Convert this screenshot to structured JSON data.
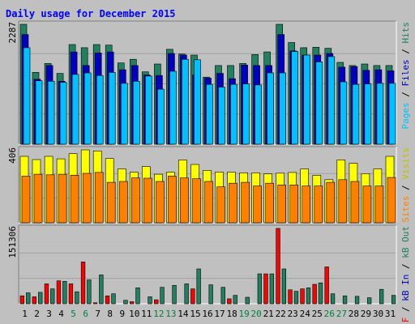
{
  "chart_data": {
    "type": "bar",
    "title": "Daily usage for December 2015",
    "days": [
      1,
      2,
      3,
      4,
      5,
      6,
      7,
      8,
      9,
      10,
      11,
      12,
      13,
      14,
      15,
      16,
      17,
      18,
      19,
      20,
      21,
      22,
      23,
      24,
      25,
      26,
      27,
      28,
      29,
      30,
      31
    ],
    "weekend_days": [
      5,
      6,
      12,
      13,
      19,
      20,
      26,
      27
    ],
    "panels": [
      {
        "id": "hits",
        "max_label": "2287",
        "ymax": 2287,
        "series": [
          {
            "name": "Hits",
            "color": "#208060",
            "values": [
              2287,
              1370,
              1540,
              1350,
              1900,
              1840,
              1900,
              1890,
              1550,
              1620,
              1380,
              1530,
              1810,
              1720,
              1700,
              1280,
              1500,
              1500,
              1540,
              1710,
              1760,
              2287,
              1940,
              1840,
              1850,
              1830,
              1560,
              1500,
              1530,
              1500,
              1500
            ]
          },
          {
            "name": "Files",
            "color": "#0000c0",
            "values": [
              2090,
              1240,
              1500,
              1200,
              1760,
              1500,
              1740,
              1760,
              1420,
              1500,
              1320,
              1310,
              1730,
              1700,
              1320,
              1260,
              1350,
              1250,
              1510,
              1500,
              1500,
              2090,
              1780,
              1700,
              1700,
              1730,
              1470,
              1480,
              1410,
              1420,
              1400
            ]
          },
          {
            "name": "Pages",
            "color": "#00c0ff",
            "values": [
              1840,
              1210,
              1200,
              1180,
              1330,
              1360,
              1310,
              1370,
              1160,
              1200,
              1300,
              1050,
              1390,
              1620,
              1610,
              1140,
              1090,
              1140,
              1150,
              1130,
              1360,
              1360,
              1770,
              1700,
              1570,
              1670,
              1190,
              1140,
              1150,
              1160,
              1160
            ]
          }
        ]
      },
      {
        "id": "visits",
        "max_label": "406",
        "ymax": 406,
        "series": [
          {
            "name": "Visits",
            "color": "#ffff00",
            "values": [
              370,
              352,
              370,
              356,
              385,
              406,
              400,
              358,
              300,
              282,
              313,
              270,
              282,
              350,
              325,
              292,
              282,
              282,
              278,
              278,
              272,
              276,
              280,
              300,
              264,
              240,
              350,
              331,
              274,
              300,
              370
            ]
          },
          {
            "name": "Sites",
            "color": "#ff8000",
            "values": [
              260,
              270,
              267,
              270,
              265,
              275,
              280,
              225,
              230,
              250,
              248,
              230,
              260,
              250,
              245,
              230,
              200,
              220,
              225,
              205,
              220,
              210,
              210,
              205,
              205,
              225,
              240,
              230,
              205,
              205,
              252
            ]
          }
        ]
      },
      {
        "id": "kbytes",
        "max_label": "151306",
        "ymax": 151306,
        "series": [
          {
            "name": "KB F",
            "color": "#ff0000",
            "values": [
              16000,
              14000,
              40000,
              46000,
              40000,
              84000,
              2000,
              16000,
              0,
              4000,
              0,
              8000,
              0,
              0,
              30000,
              0,
              0,
              10000,
              0,
              0,
              60000,
              151306,
              28000,
              30000,
              39000,
              74000,
              0,
              0,
              0,
              0,
              0
            ]
          },
          {
            "name": "KB In",
            "color": "#0000c0",
            "values": [
              0,
              0,
              0,
              0,
              0,
              0,
              0,
              0,
              0,
              0,
              0,
              0,
              0,
              0,
              0,
              0,
              0,
              0,
              0,
              0,
              0,
              0,
              0,
              0,
              0,
              0,
              0,
              0,
              0,
              0,
              0
            ]
          },
          {
            "name": "KB Out",
            "color": "#208060",
            "values": [
              22000,
              23000,
              30000,
              45000,
              24000,
              48000,
              58000,
              20000,
              7000,
              32000,
              14000,
              33000,
              37000,
              40000,
              70000,
              38000,
              33000,
              17000,
              13000,
              60000,
              60000,
              70000,
              25000,
              32000,
              42000,
              20000,
              16000,
              15000,
              12000,
              29000,
              17000
            ]
          }
        ]
      }
    ],
    "right_labels": {
      "hits": [
        {
          "text": "Pages",
          "color": "#00c0ff"
        },
        {
          "text": " / ",
          "color": "#000000"
        },
        {
          "text": "Files",
          "color": "#0000c0"
        },
        {
          "text": " / ",
          "color": "#000000"
        },
        {
          "text": "Hits",
          "color": "#208060"
        }
      ],
      "visits": [
        {
          "text": "Sites",
          "color": "#ff8000"
        },
        {
          "text": " / ",
          "color": "#000000"
        },
        {
          "text": "Visits",
          "color": "#c0c000"
        }
      ],
      "kbytes": [
        {
          "text": "kB F",
          "color": "#ff0000"
        },
        {
          "text": " / ",
          "color": "#000000"
        },
        {
          "text": "kB In",
          "color": "#0000c0"
        },
        {
          "text": " / ",
          "color": "#000000"
        },
        {
          "text": "kB Out",
          "color": "#208060"
        }
      ]
    },
    "colors": {
      "background": "#c0c0c0",
      "border_light": "#ffffff",
      "border_dark": "#808080",
      "title": "#0000ff",
      "weekday_label": "#000000",
      "weekend_label": "#008040",
      "bar_outline": "#000000"
    },
    "grid": true
  }
}
